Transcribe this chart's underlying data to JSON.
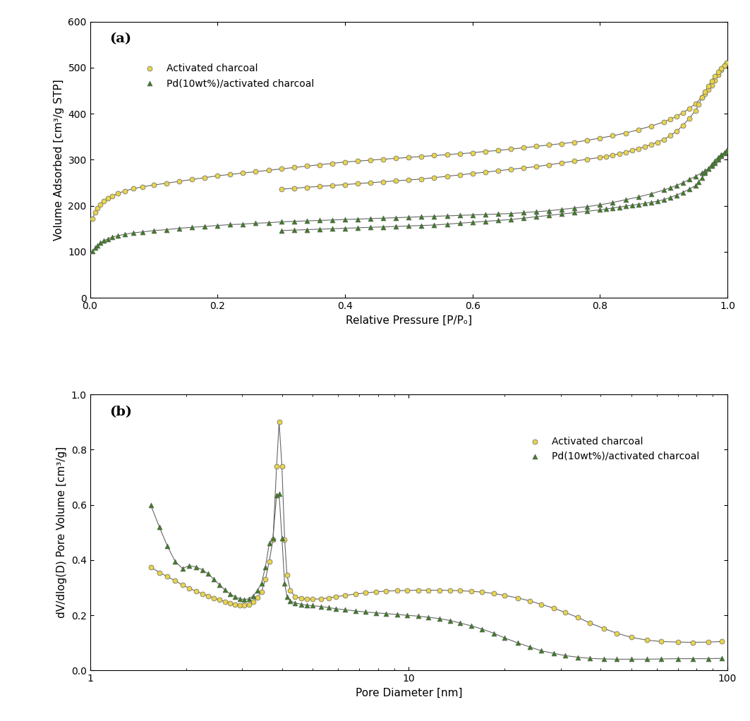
{
  "panel_a": {
    "title": "(a)",
    "xlabel": "Relative Pressure [P/Pₒ]",
    "ylabel": "Volume Adsorbed [cm³/g STP]",
    "ylim": [
      0,
      600
    ],
    "yticks": [
      0,
      100,
      200,
      300,
      400,
      500,
      600
    ],
    "xlim": [
      0.0,
      1.0
    ],
    "xticks": [
      0.0,
      0.2,
      0.4,
      0.6,
      0.8,
      1.0
    ],
    "ac_color": "#e8d44d",
    "pd_color": "#3a7d1e",
    "line_color": "#666666",
    "legend": [
      "Activated charcoal",
      "Pd(10wt%)/activated charcoal"
    ],
    "ac_ads_x": [
      0.004,
      0.008,
      0.012,
      0.016,
      0.022,
      0.028,
      0.035,
      0.044,
      0.055,
      0.068,
      0.082,
      0.1,
      0.12,
      0.14,
      0.16,
      0.18,
      0.2,
      0.22,
      0.24,
      0.26,
      0.28,
      0.3,
      0.32,
      0.34,
      0.36,
      0.38,
      0.4,
      0.42,
      0.44,
      0.46,
      0.48,
      0.5,
      0.52,
      0.54,
      0.56,
      0.58,
      0.6,
      0.62,
      0.64,
      0.66,
      0.68,
      0.7,
      0.72,
      0.74,
      0.76,
      0.78,
      0.8,
      0.82,
      0.84,
      0.86,
      0.88,
      0.9,
      0.91,
      0.92,
      0.93,
      0.94,
      0.95,
      0.96,
      0.965,
      0.97,
      0.975,
      0.98,
      0.985,
      0.99,
      0.995,
      0.999
    ],
    "ac_ads_y": [
      172,
      186,
      195,
      202,
      210,
      216,
      221,
      227,
      232,
      237,
      241,
      245,
      249,
      253,
      257,
      261,
      265,
      268,
      271,
      274,
      277,
      280,
      283,
      286,
      289,
      292,
      295,
      297,
      299,
      301,
      303,
      305,
      307,
      309,
      311,
      313,
      315,
      318,
      320,
      323,
      326,
      329,
      332,
      335,
      338,
      342,
      347,
      352,
      358,
      365,
      373,
      382,
      388,
      394,
      402,
      411,
      422,
      436,
      443,
      452,
      462,
      473,
      485,
      496,
      505,
      510
    ],
    "ac_des_x": [
      0.999,
      0.995,
      0.99,
      0.985,
      0.98,
      0.975,
      0.97,
      0.965,
      0.96,
      0.955,
      0.95,
      0.94,
      0.93,
      0.92,
      0.91,
      0.9,
      0.89,
      0.88,
      0.87,
      0.86,
      0.85,
      0.84,
      0.83,
      0.82,
      0.81,
      0.8,
      0.78,
      0.76,
      0.74,
      0.72,
      0.7,
      0.68,
      0.66,
      0.64,
      0.62,
      0.6,
      0.58,
      0.56,
      0.54,
      0.52,
      0.5,
      0.48,
      0.46,
      0.44,
      0.42,
      0.4,
      0.38,
      0.36,
      0.34,
      0.32,
      0.3
    ],
    "ac_des_y": [
      510,
      505,
      498,
      490,
      481,
      471,
      460,
      448,
      435,
      420,
      407,
      390,
      374,
      362,
      352,
      344,
      338,
      333,
      328,
      324,
      320,
      316,
      313,
      310,
      307,
      305,
      301,
      297,
      293,
      289,
      285,
      282,
      279,
      276,
      273,
      270,
      267,
      264,
      261,
      258,
      256,
      254,
      252,
      250,
      248,
      246,
      244,
      242,
      240,
      238,
      236
    ],
    "pd_ads_x": [
      0.004,
      0.008,
      0.012,
      0.016,
      0.022,
      0.028,
      0.035,
      0.044,
      0.055,
      0.068,
      0.082,
      0.1,
      0.12,
      0.14,
      0.16,
      0.18,
      0.2,
      0.22,
      0.24,
      0.26,
      0.28,
      0.3,
      0.32,
      0.34,
      0.36,
      0.38,
      0.4,
      0.42,
      0.44,
      0.46,
      0.48,
      0.5,
      0.52,
      0.54,
      0.56,
      0.58,
      0.6,
      0.62,
      0.64,
      0.66,
      0.68,
      0.7,
      0.72,
      0.74,
      0.76,
      0.78,
      0.8,
      0.82,
      0.84,
      0.86,
      0.88,
      0.9,
      0.91,
      0.92,
      0.93,
      0.94,
      0.95,
      0.96,
      0.965,
      0.97,
      0.975,
      0.98,
      0.985,
      0.99,
      0.995,
      0.999
    ],
    "pd_ads_y": [
      101,
      109,
      114,
      119,
      124,
      128,
      132,
      135,
      138,
      141,
      143,
      146,
      148,
      151,
      153,
      155,
      157,
      159,
      160,
      162,
      163,
      165,
      166,
      167,
      168,
      169,
      170,
      171,
      172,
      173,
      174,
      175,
      176,
      177,
      178,
      179,
      180,
      181,
      182,
      183,
      185,
      187,
      189,
      192,
      195,
      198,
      202,
      207,
      213,
      219,
      226,
      234,
      239,
      244,
      250,
      257,
      264,
      272,
      276,
      281,
      287,
      293,
      300,
      308,
      315,
      320
    ],
    "pd_des_x": [
      0.999,
      0.995,
      0.99,
      0.985,
      0.98,
      0.975,
      0.97,
      0.965,
      0.96,
      0.955,
      0.95,
      0.94,
      0.93,
      0.92,
      0.91,
      0.9,
      0.89,
      0.88,
      0.87,
      0.86,
      0.85,
      0.84,
      0.83,
      0.82,
      0.81,
      0.8,
      0.78,
      0.76,
      0.74,
      0.72,
      0.7,
      0.68,
      0.66,
      0.64,
      0.62,
      0.6,
      0.58,
      0.56,
      0.54,
      0.52,
      0.5,
      0.48,
      0.46,
      0.44,
      0.42,
      0.4,
      0.38,
      0.36,
      0.34,
      0.32,
      0.3
    ],
    "pd_des_y": [
      320,
      316,
      311,
      305,
      298,
      290,
      281,
      271,
      261,
      252,
      244,
      236,
      229,
      223,
      218,
      213,
      210,
      207,
      205,
      203,
      201,
      199,
      197,
      195,
      193,
      191,
      188,
      185,
      182,
      179,
      176,
      173,
      170,
      168,
      166,
      164,
      162,
      160,
      158,
      157,
      156,
      155,
      154,
      153,
      152,
      151,
      150,
      149,
      148,
      147,
      146
    ]
  },
  "panel_b": {
    "title": "(b)",
    "xlabel": "Pore Diameter [nm]",
    "ylabel": "dV/dlog(D) Pore Volume [cm³/g]",
    "ylim": [
      0.0,
      1.0
    ],
    "yticks": [
      0.0,
      0.2,
      0.4,
      0.6,
      0.8,
      1.0
    ],
    "xlim": [
      1,
      100
    ],
    "ac_color": "#e8d44d",
    "pd_color": "#3a7d1e",
    "line_color": "#666666",
    "legend": [
      "Activated charcoal",
      "Pd(10wt%)/activated charcoal"
    ],
    "ac_x": [
      1.55,
      1.65,
      1.75,
      1.85,
      1.95,
      2.05,
      2.15,
      2.25,
      2.35,
      2.45,
      2.55,
      2.65,
      2.75,
      2.85,
      2.95,
      3.05,
      3.15,
      3.25,
      3.35,
      3.45,
      3.55,
      3.65,
      3.75,
      3.85,
      3.92,
      4.0,
      4.08,
      4.15,
      4.25,
      4.4,
      4.6,
      4.8,
      5.0,
      5.3,
      5.6,
      5.9,
      6.3,
      6.8,
      7.3,
      7.9,
      8.5,
      9.2,
      9.9,
      10.7,
      11.5,
      12.5,
      13.5,
      14.5,
      15.7,
      17.0,
      18.5,
      20.0,
      22.0,
      24.0,
      26.0,
      28.5,
      31.0,
      34.0,
      37.0,
      41.0,
      45.0,
      50.0,
      56.0,
      62.0,
      70.0,
      78.0,
      87.0,
      96.0
    ],
    "ac_y": [
      0.375,
      0.355,
      0.34,
      0.325,
      0.31,
      0.298,
      0.287,
      0.278,
      0.27,
      0.263,
      0.256,
      0.25,
      0.245,
      0.24,
      0.237,
      0.235,
      0.238,
      0.248,
      0.265,
      0.285,
      0.33,
      0.395,
      0.475,
      0.74,
      0.9,
      0.74,
      0.475,
      0.345,
      0.29,
      0.268,
      0.262,
      0.258,
      0.258,
      0.26,
      0.263,
      0.267,
      0.272,
      0.277,
      0.281,
      0.285,
      0.288,
      0.289,
      0.29,
      0.291,
      0.291,
      0.291,
      0.29,
      0.289,
      0.287,
      0.284,
      0.279,
      0.272,
      0.263,
      0.252,
      0.24,
      0.226,
      0.21,
      0.192,
      0.172,
      0.152,
      0.135,
      0.12,
      0.11,
      0.105,
      0.103,
      0.102,
      0.103,
      0.105
    ],
    "pd_x": [
      1.55,
      1.65,
      1.75,
      1.85,
      1.95,
      2.05,
      2.15,
      2.25,
      2.35,
      2.45,
      2.55,
      2.65,
      2.75,
      2.85,
      2.95,
      3.05,
      3.15,
      3.25,
      3.35,
      3.45,
      3.55,
      3.65,
      3.75,
      3.85,
      3.92,
      4.0,
      4.08,
      4.15,
      4.25,
      4.4,
      4.6,
      4.8,
      5.0,
      5.3,
      5.6,
      5.9,
      6.3,
      6.8,
      7.3,
      7.9,
      8.5,
      9.2,
      9.9,
      10.7,
      11.5,
      12.5,
      13.5,
      14.5,
      15.7,
      17.0,
      18.5,
      20.0,
      22.0,
      24.0,
      26.0,
      28.5,
      31.0,
      34.0,
      37.0,
      41.0,
      45.0,
      50.0,
      56.0,
      62.0,
      70.0,
      78.0,
      87.0,
      96.0
    ],
    "pd_y": [
      0.6,
      0.52,
      0.45,
      0.395,
      0.37,
      0.38,
      0.375,
      0.365,
      0.35,
      0.33,
      0.31,
      0.292,
      0.278,
      0.267,
      0.26,
      0.257,
      0.26,
      0.27,
      0.29,
      0.315,
      0.375,
      0.46,
      0.48,
      0.635,
      0.64,
      0.48,
      0.315,
      0.268,
      0.252,
      0.245,
      0.24,
      0.236,
      0.235,
      0.232,
      0.228,
      0.224,
      0.22,
      0.216,
      0.212,
      0.209,
      0.206,
      0.203,
      0.2,
      0.197,
      0.193,
      0.188,
      0.181,
      0.172,
      0.162,
      0.15,
      0.135,
      0.118,
      0.1,
      0.085,
      0.072,
      0.062,
      0.054,
      0.048,
      0.044,
      0.042,
      0.041,
      0.041,
      0.041,
      0.042,
      0.043,
      0.043,
      0.043,
      0.044
    ]
  },
  "figure_bg": "#ffffff",
  "axes_bg": "#ffffff"
}
